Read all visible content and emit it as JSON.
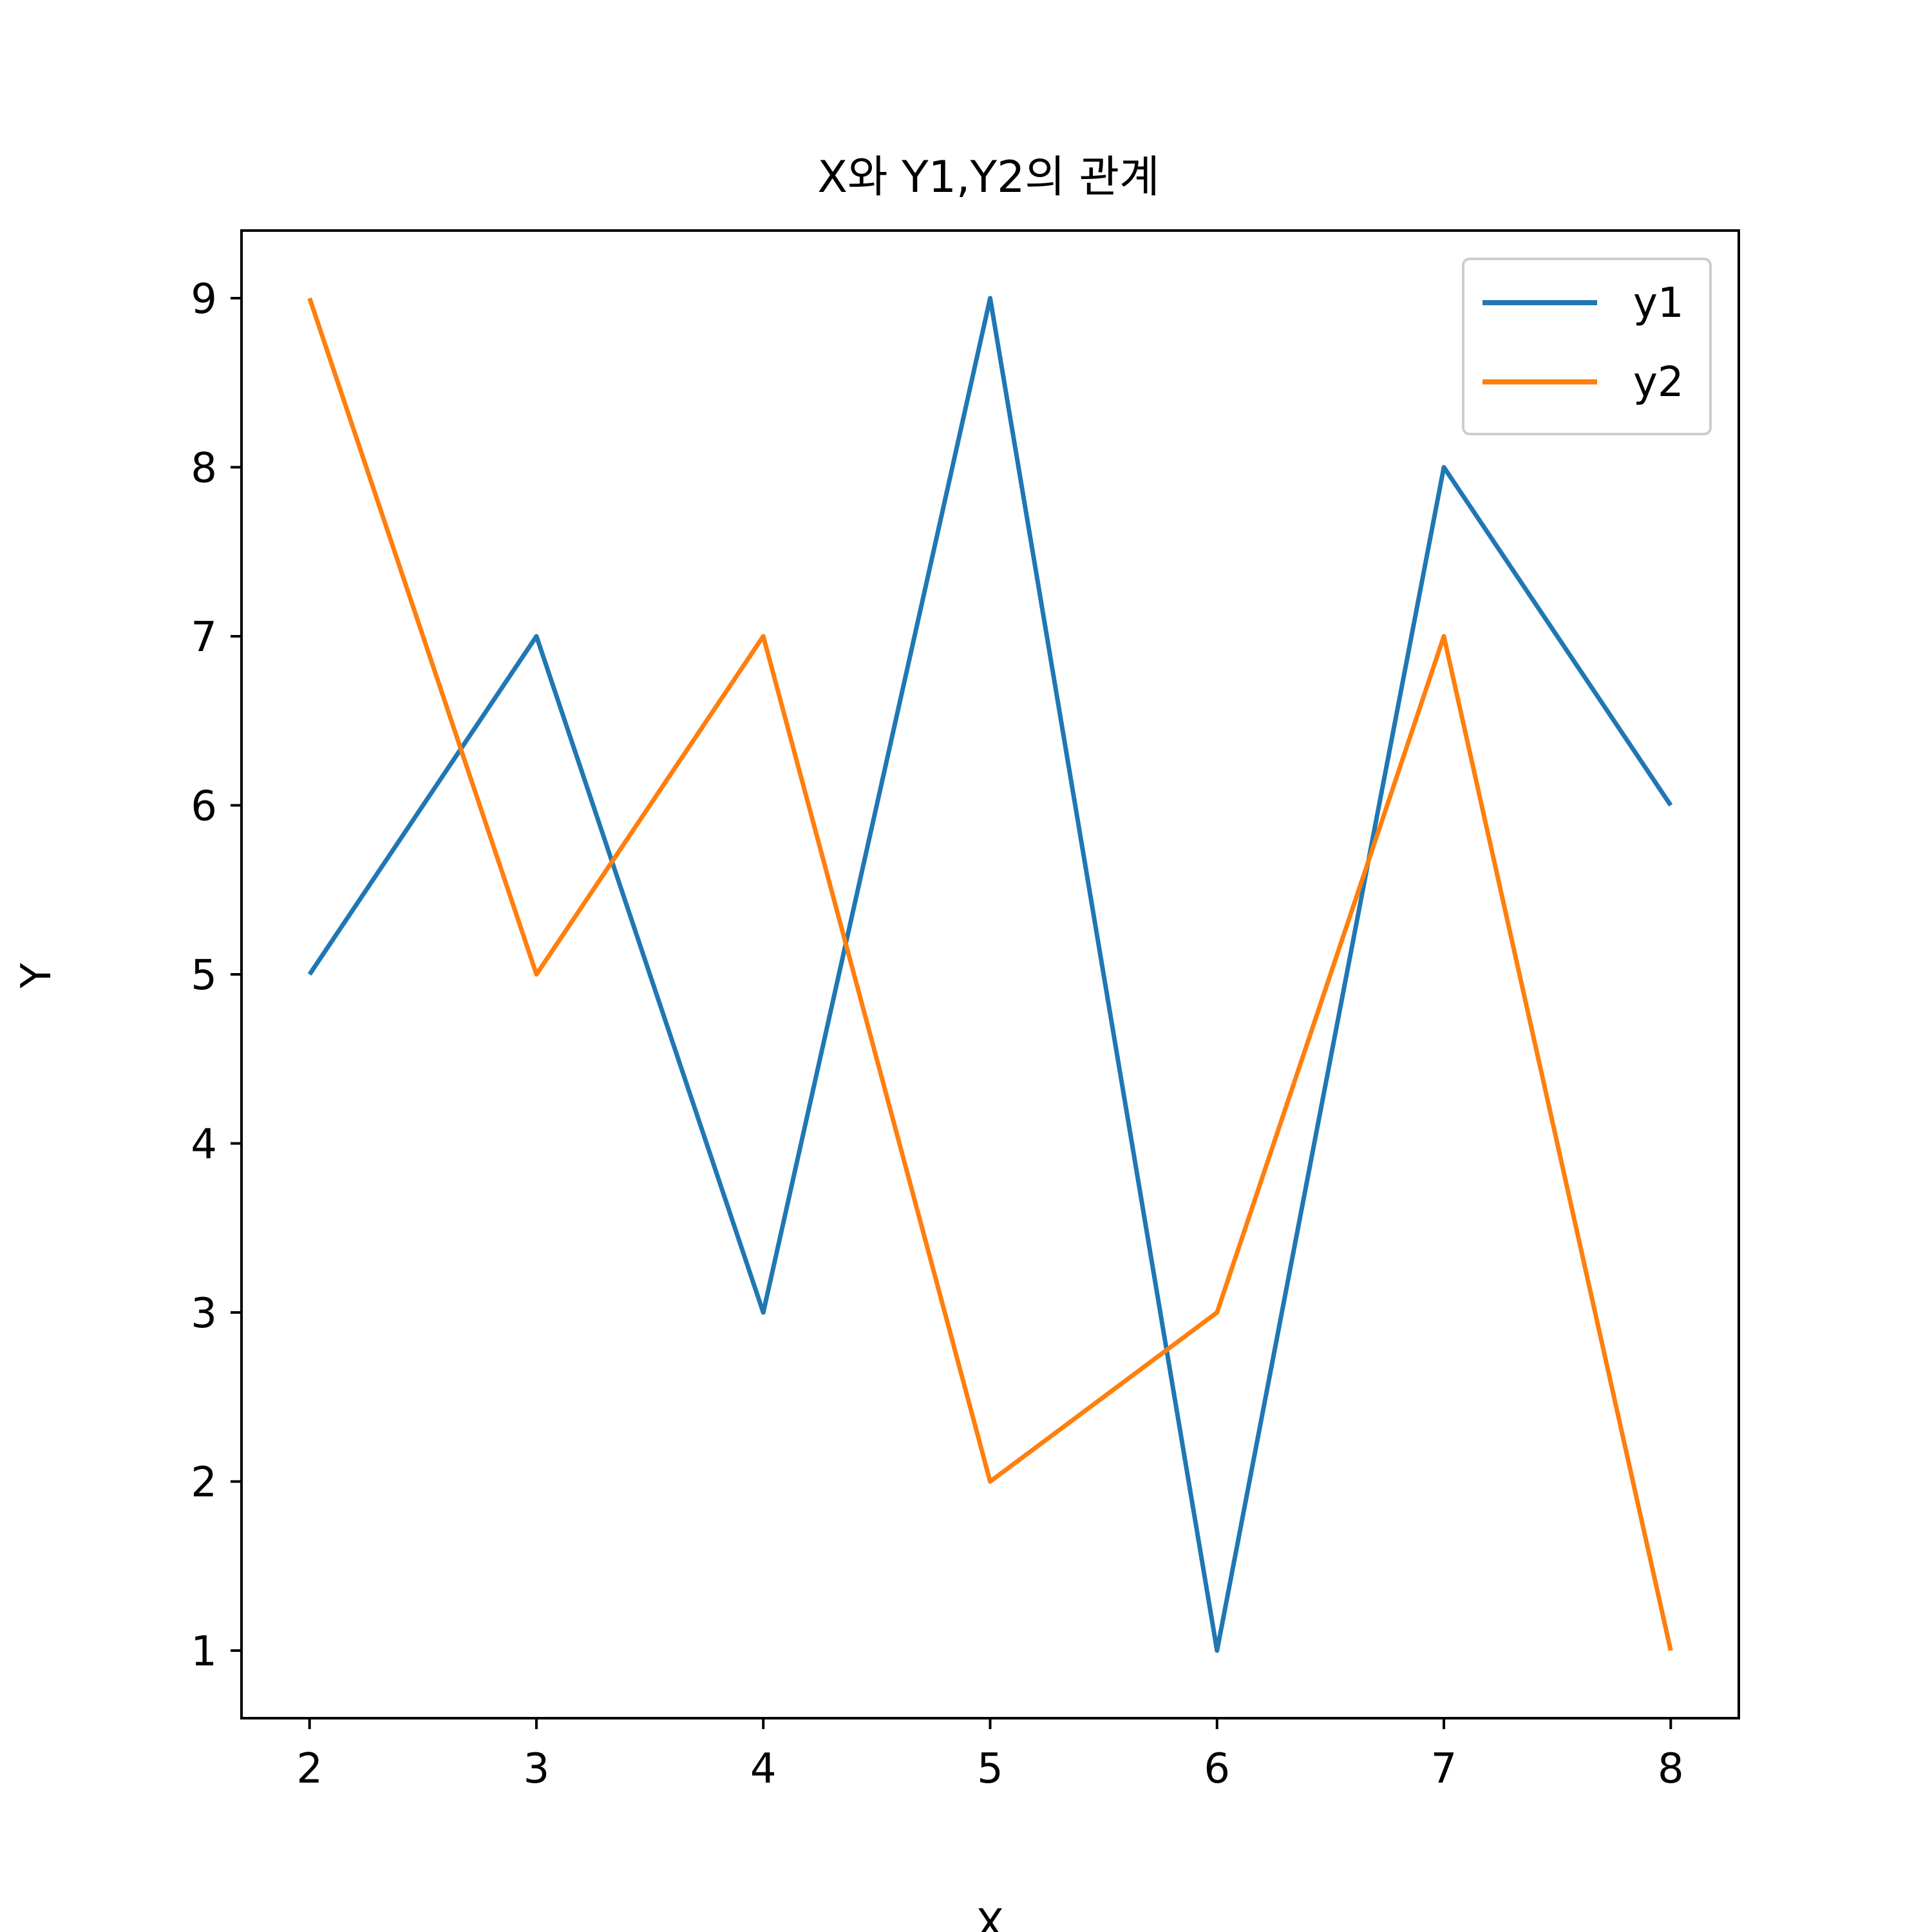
{
  "chart_data": {
    "type": "line",
    "title": "X와 Y1,Y2의 관계",
    "xlabel": "X",
    "ylabel": "Y",
    "x": [
      2,
      3,
      4,
      5,
      6,
      7,
      8
    ],
    "xlim": [
      1.7,
      8.3
    ],
    "ylim": [
      0.6,
      9.4
    ],
    "xticks": [
      2,
      3,
      4,
      5,
      6,
      7,
      8
    ],
    "yticks": [
      1,
      2,
      3,
      4,
      5,
      6,
      7,
      8,
      9
    ],
    "grid": false,
    "legend_position": "top-right",
    "series": [
      {
        "name": "y1",
        "color": "#1f77b4",
        "values": [
          5,
          7,
          3,
          9,
          1,
          8,
          6
        ]
      },
      {
        "name": "y2",
        "color": "#ff7f0e",
        "values": [
          9,
          5,
          7,
          2,
          3,
          7,
          1
        ]
      }
    ]
  }
}
